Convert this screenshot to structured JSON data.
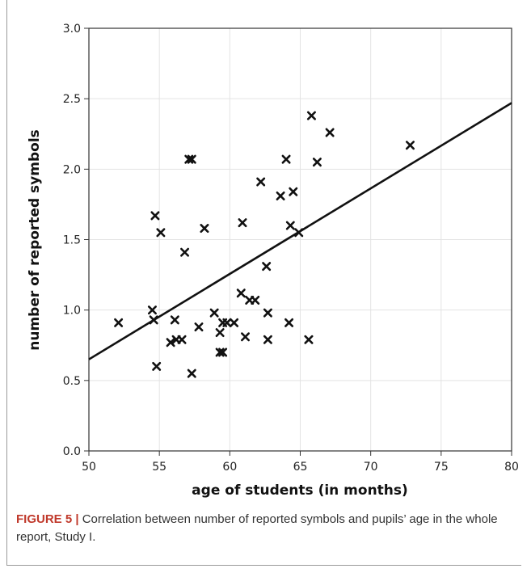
{
  "caption": {
    "lead": "FIGURE 5 |",
    "text": " Correlation between number of reported symbols and pupils’ age in the whole report, Study I."
  },
  "chart_data": {
    "type": "scatter",
    "title": "",
    "xlabel": "age of students (in months)",
    "ylabel": "number of reported symbols",
    "xlim": [
      50,
      80
    ],
    "ylim": [
      0.0,
      3.0
    ],
    "xticks": [
      50,
      55,
      60,
      65,
      70,
      75,
      80
    ],
    "yticks": [
      0.0,
      0.5,
      1.0,
      1.5,
      2.0,
      2.5,
      3.0
    ],
    "xtick_labels": [
      "50",
      "55",
      "60",
      "65",
      "70",
      "75",
      "80"
    ],
    "ytick_labels": [
      "0.0",
      "0.5",
      "1.0",
      "1.5",
      "2.0",
      "2.5",
      "3.0"
    ],
    "grid": true,
    "marker": "x",
    "points": [
      {
        "x": 52.1,
        "y": 0.91
      },
      {
        "x": 54.5,
        "y": 1.0
      },
      {
        "x": 54.6,
        "y": 0.93
      },
      {
        "x": 54.7,
        "y": 1.67
      },
      {
        "x": 54.8,
        "y": 0.6
      },
      {
        "x": 55.1,
        "y": 1.55
      },
      {
        "x": 55.8,
        "y": 0.77
      },
      {
        "x": 56.1,
        "y": 0.93
      },
      {
        "x": 56.2,
        "y": 0.79
      },
      {
        "x": 56.6,
        "y": 0.79
      },
      {
        "x": 56.8,
        "y": 1.41
      },
      {
        "x": 57.1,
        "y": 2.07
      },
      {
        "x": 57.3,
        "y": 2.07
      },
      {
        "x": 57.3,
        "y": 0.55
      },
      {
        "x": 57.8,
        "y": 0.88
      },
      {
        "x": 58.2,
        "y": 1.58
      },
      {
        "x": 58.9,
        "y": 0.98
      },
      {
        "x": 59.3,
        "y": 0.84
      },
      {
        "x": 59.3,
        "y": 0.7
      },
      {
        "x": 59.5,
        "y": 0.91
      },
      {
        "x": 59.5,
        "y": 0.7
      },
      {
        "x": 59.8,
        "y": 0.91
      },
      {
        "x": 60.3,
        "y": 0.91
      },
      {
        "x": 60.8,
        "y": 1.12
      },
      {
        "x": 60.9,
        "y": 1.62
      },
      {
        "x": 61.1,
        "y": 0.81
      },
      {
        "x": 61.4,
        "y": 1.07
      },
      {
        "x": 61.8,
        "y": 1.07
      },
      {
        "x": 62.2,
        "y": 1.91
      },
      {
        "x": 62.6,
        "y": 1.31
      },
      {
        "x": 62.7,
        "y": 0.98
      },
      {
        "x": 62.7,
        "y": 0.79
      },
      {
        "x": 63.6,
        "y": 1.81
      },
      {
        "x": 64.0,
        "y": 2.07
      },
      {
        "x": 64.2,
        "y": 0.91
      },
      {
        "x": 64.3,
        "y": 1.6
      },
      {
        "x": 64.5,
        "y": 1.84
      },
      {
        "x": 64.9,
        "y": 1.55
      },
      {
        "x": 65.6,
        "y": 0.79
      },
      {
        "x": 65.8,
        "y": 2.38
      },
      {
        "x": 66.2,
        "y": 2.05
      },
      {
        "x": 67.1,
        "y": 2.26
      },
      {
        "x": 72.8,
        "y": 2.17
      }
    ],
    "fit_line": {
      "x": [
        50,
        80
      ],
      "y": [
        0.65,
        2.47
      ]
    }
  }
}
